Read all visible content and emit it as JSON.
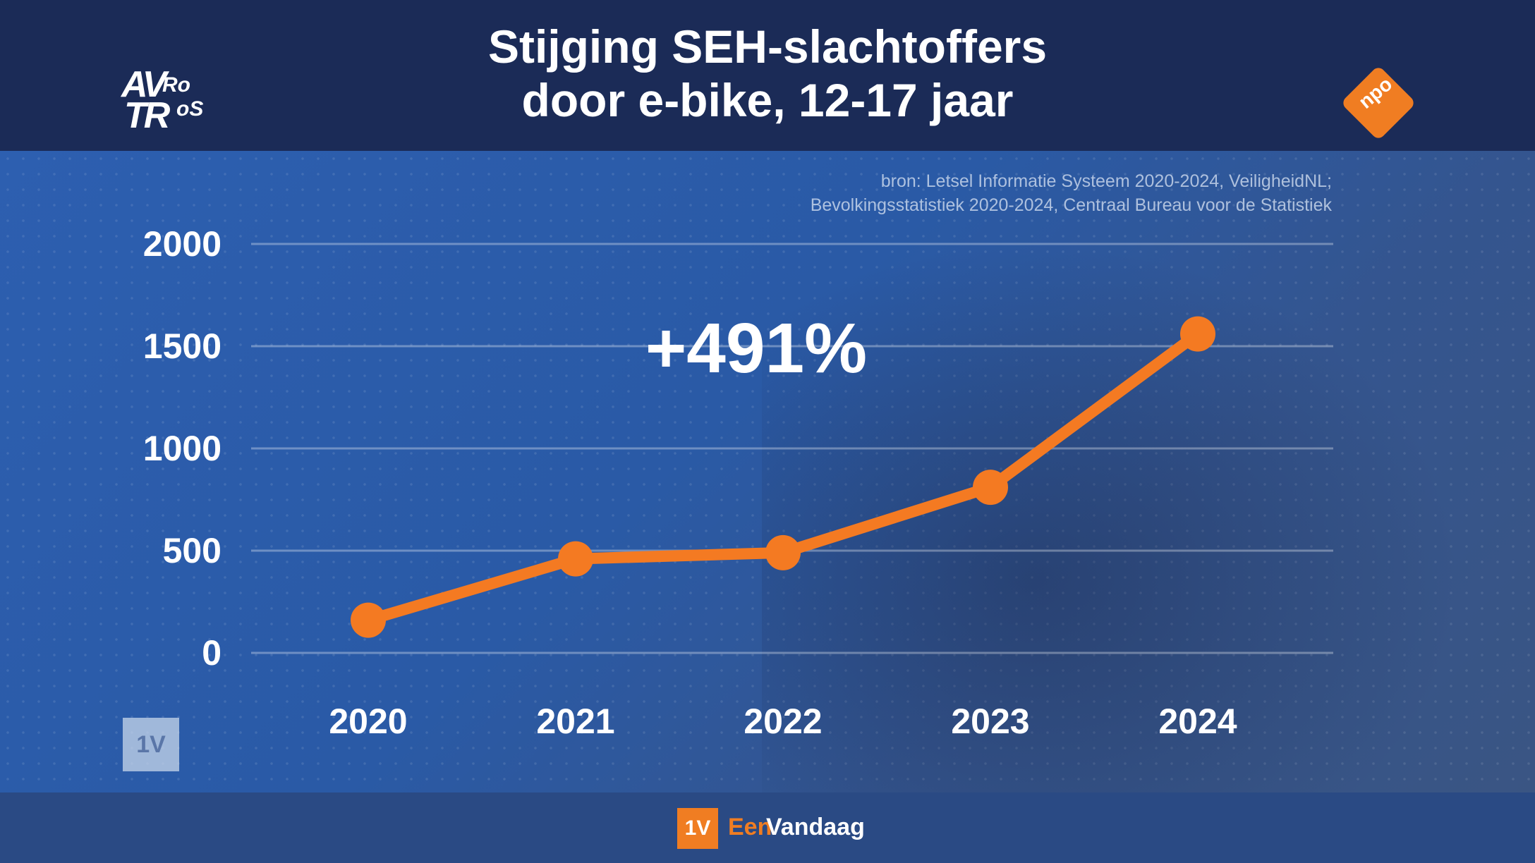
{
  "header": {
    "title_line1": "Stijging SEH-slachtoffers",
    "title_line2": "door e-bike, 12-17 jaar",
    "logo_left": {
      "part1": "AV",
      "part2": "Ro",
      "part3": "TR",
      "part4": "oS"
    },
    "logo_right": "npo"
  },
  "source": {
    "line1": "bron: Letsel Informatie Systeem 2020-2024, VeiligheidNL;",
    "line2": "Bevolkingsstatistiek 2020-2024, Centraal Bureau voor de Statistiek"
  },
  "badge": "1V",
  "footer": {
    "logo_box": "1V",
    "brand_part1": "Een",
    "brand_part2": "Vandaag"
  },
  "colors": {
    "line": "#f47a22",
    "text": "#ffffff",
    "header_bg": "#1b2b57"
  },
  "chart_data": {
    "type": "line",
    "title": "Stijging SEH-slachtoffers door e-bike, 12-17 jaar",
    "x": [
      "2020",
      "2021",
      "2022",
      "2023",
      "2024"
    ],
    "series": [
      {
        "values": [
          160,
          460,
          490,
          810,
          1560
        ]
      }
    ],
    "ylim": [
      0,
      2000
    ],
    "yticks": [
      0,
      500,
      1000,
      1500,
      2000
    ],
    "ytick_labels": [
      "0",
      "500",
      "1000",
      "1500",
      "2000"
    ],
    "grid": true,
    "annotation": "+491%"
  }
}
